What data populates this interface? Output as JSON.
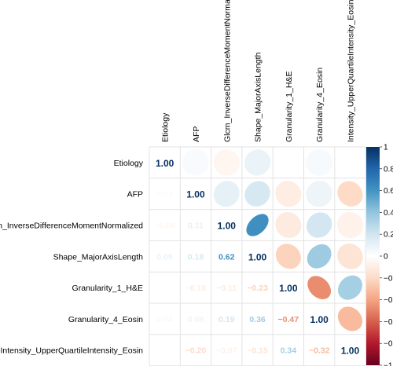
{
  "chart_data": {
    "type": "heatmap",
    "variables": [
      "Etiology",
      "AFP",
      "Glcm_InverseDifferenceMomentNormalized",
      "Shape_MajorAxisLength",
      "Granularity_1_H&E",
      "Granularity_4_Eosin",
      "Intensity_UpperQuartileIntensity_Eosin"
    ],
    "row_labels": [
      "Etiology",
      "AFP",
      "Glcm_InverseDifferenceMomentNormalized",
      "Shape_MajorAxisLength",
      "Granularity_1_H&E",
      "Granularity_4_Eosin",
      "Intensity_UpperQuartileIntensity_Eosin"
    ],
    "col_labels": [
      "Etiology",
      "AFP",
      "Glcm_InverseDifferenceMomentNormalized",
      "Shape_MajorAxisLength",
      "Granularity_1_H&E",
      "Granularity_4_Eosin",
      "Intensity_UpperQuartileIntensity_Eosin"
    ],
    "matrix": [
      [
        1.0,
        0.03,
        -0.05,
        0.09,
        0.0,
        0.04,
        0.0
      ],
      [
        0.03,
        1.0,
        0.11,
        0.18,
        -0.1,
        0.08,
        -0.2
      ],
      [
        -0.05,
        0.11,
        1.0,
        0.62,
        -0.11,
        0.19,
        -0.07
      ],
      [
        0.09,
        0.18,
        0.62,
        1.0,
        -0.23,
        0.36,
        -0.15
      ],
      [
        0.0,
        -0.1,
        -0.11,
        -0.23,
        1.0,
        -0.47,
        0.34
      ],
      [
        0.04,
        0.08,
        0.19,
        0.36,
        -0.47,
        1.0,
        -0.32
      ],
      [
        0.0,
        -0.2,
        -0.07,
        -0.15,
        0.34,
        -0.32,
        1.0
      ]
    ],
    "lower_triangle": "numbers",
    "upper_triangle": "ellipses",
    "diagonal_labels": [
      "1.00",
      "1.00",
      "1.00",
      "1.00",
      "1.00",
      "1.00",
      "1.00"
    ],
    "lower_labels": [
      [
        "0.03"
      ],
      [
        "−0.05",
        "0.11"
      ],
      [
        "0.09",
        "0.18",
        "0.62"
      ],
      [
        "0.00",
        "−0.10",
        "−0.11",
        "−0.23"
      ],
      [
        "0.04",
        "0.08",
        "0.19",
        "0.36",
        "−0.47"
      ],
      [
        "0.00",
        "−0.20",
        "−0.07",
        "−0.15",
        "0.34",
        "−0.32"
      ]
    ],
    "colorbar": {
      "ticks": [
        "1",
        "0.8",
        "0.6",
        "0.4",
        "0.2",
        "0",
        "−0.2",
        "−0.4",
        "−0.6",
        "−0.8",
        "−1"
      ],
      "range": [
        -1,
        1
      ],
      "colors": {
        "neg": "#67001F",
        "mid": "#FFFFFF",
        "pos": "#053061"
      }
    }
  }
}
